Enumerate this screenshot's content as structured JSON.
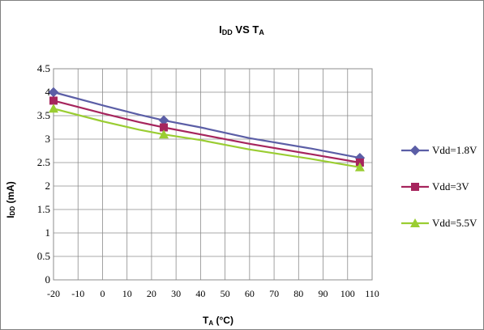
{
  "chart_data": {
    "type": "line",
    "title": {
      "main": "I",
      "sub": "DD",
      "mid": " VS T",
      "sub2": "A"
    },
    "xlabel": {
      "main": "T",
      "sub": "A",
      "rest": " (°C)"
    },
    "ylabel": {
      "main": "I",
      "sub": "DD",
      "rest": " (mA)"
    },
    "xlim": [
      -20,
      110
    ],
    "ylim": [
      0,
      4.5
    ],
    "x_ticks": [
      -20,
      -10,
      0,
      10,
      20,
      30,
      40,
      50,
      60,
      70,
      80,
      90,
      100,
      110
    ],
    "y_ticks": [
      0,
      0.5,
      1,
      1.5,
      2,
      2.5,
      3,
      3.5,
      4,
      4.5
    ],
    "grid": true,
    "legend_position": "right",
    "series": [
      {
        "name": "Vdd=1.8V",
        "color": "#5b5ea6",
        "marker": "diamond",
        "x": [
          -20,
          25,
          105
        ],
        "y": [
          4.0,
          3.4,
          2.6
        ],
        "curve": [
          [
            -20,
            4.0
          ],
          [
            0,
            3.72
          ],
          [
            15,
            3.52
          ],
          [
            25,
            3.4
          ],
          [
            40,
            3.25
          ],
          [
            60,
            3.02
          ],
          [
            85,
            2.8
          ],
          [
            105,
            2.6
          ]
        ]
      },
      {
        "name": "Vdd=3V",
        "color": "#a6255d",
        "marker": "square",
        "x": [
          -20,
          25,
          105
        ],
        "y": [
          3.82,
          3.25,
          2.5
        ],
        "curve": [
          [
            -20,
            3.82
          ],
          [
            0,
            3.55
          ],
          [
            15,
            3.36
          ],
          [
            25,
            3.25
          ],
          [
            40,
            3.1
          ],
          [
            60,
            2.9
          ],
          [
            85,
            2.68
          ],
          [
            105,
            2.5
          ]
        ]
      },
      {
        "name": "Vdd=5.5V",
        "color": "#9acd32",
        "marker": "triangle",
        "x": [
          -20,
          25,
          105
        ],
        "y": [
          3.65,
          3.1,
          2.4
        ],
        "curve": [
          [
            -20,
            3.65
          ],
          [
            0,
            3.38
          ],
          [
            15,
            3.2
          ],
          [
            25,
            3.1
          ],
          [
            40,
            2.98
          ],
          [
            60,
            2.78
          ],
          [
            85,
            2.58
          ],
          [
            105,
            2.4
          ]
        ]
      }
    ]
  }
}
